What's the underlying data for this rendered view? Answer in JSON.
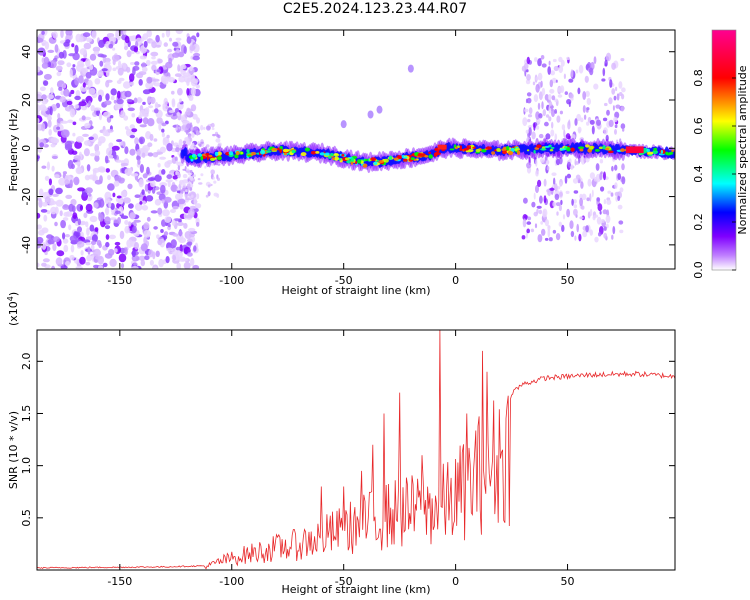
{
  "title": "C2E5.2024.123.23.44.R07",
  "chart_data": [
    {
      "type": "heatmap",
      "xlabel": "Height of straight line (km)",
      "ylabel": "Frequency (Hz)",
      "xlim": [
        -187,
        98
      ],
      "ylim": [
        -50,
        49
      ],
      "xticks": [
        -150,
        -100,
        -50,
        0,
        50
      ],
      "yticks": [
        -40,
        -20,
        0,
        20,
        40
      ],
      "colorbar": {
        "label": "Normalized spectral amplitude",
        "range": [
          0,
          1
        ],
        "ticks": [
          "0.0",
          "0.2",
          "0.4",
          "0.6",
          "0.8"
        ],
        "colors": [
          "#ffffff",
          "#7f00ff",
          "#0000ff",
          "#00ffff",
          "#00ff00",
          "#ffff00",
          "#ff0000",
          "#ff00aa"
        ]
      },
      "features": {
        "noise_region_km": [
          -187,
          -115
        ],
        "signal_track_km": [
          -122,
          98
        ],
        "signal_track_center_hz": [
          [
            -120,
            -4
          ],
          [
            -100,
            -3
          ],
          [
            -80,
            -1
          ],
          [
            -60,
            -2
          ],
          [
            -50,
            -4
          ],
          [
            -40,
            -6
          ],
          [
            -30,
            -5
          ],
          [
            -20,
            -4
          ],
          [
            -10,
            -2
          ],
          [
            -5,
            0
          ],
          [
            0,
            0
          ],
          [
            20,
            -1
          ],
          [
            40,
            0
          ],
          [
            60,
            0
          ],
          [
            98,
            -2
          ]
        ],
        "scatter_band_km": [
          30,
          75
        ]
      }
    },
    {
      "type": "line",
      "xlabel": "Height of straight line (km)",
      "ylabel": "SNR (10 * v/v)",
      "yscale_label": "(x10",
      "yscale_exp": "4",
      "xlim": [
        -187,
        98
      ],
      "ylim": [
        0,
        2.3
      ],
      "xticks": [
        -150,
        -100,
        -50,
        0,
        50
      ],
      "yticks": [
        0.5,
        1.0,
        1.5,
        2.0
      ],
      "ytick_labels": [
        "0.5",
        "1.0",
        "1.5",
        "2.0"
      ],
      "color": "#e8282a",
      "envelope": [
        [
          -187,
          0.02
        ],
        [
          -130,
          0.03
        ],
        [
          -112,
          0.04
        ],
        [
          -105,
          0.12
        ],
        [
          -95,
          0.2
        ],
        [
          -80,
          0.3
        ],
        [
          -70,
          0.35
        ],
        [
          -60,
          0.45
        ],
        [
          -50,
          0.55
        ],
        [
          -40,
          0.65
        ],
        [
          -30,
          0.75
        ],
        [
          -20,
          0.8
        ],
        [
          -10,
          0.85
        ],
        [
          -5,
          0.9
        ],
        [
          0,
          1.0
        ],
        [
          10,
          1.3
        ],
        [
          20,
          1.55
        ],
        [
          25,
          1.7
        ],
        [
          30,
          1.78
        ],
        [
          40,
          1.84
        ],
        [
          60,
          1.87
        ],
        [
          80,
          1.88
        ],
        [
          95,
          1.86
        ],
        [
          98,
          1.85
        ]
      ],
      "spikes": [
        [
          -7,
          2.3
        ],
        [
          -25,
          1.7
        ],
        [
          -32,
          1.5
        ],
        [
          -37,
          1.2
        ],
        [
          -42,
          0.95
        ],
        [
          -50,
          0.8
        ],
        [
          -60,
          0.8
        ],
        [
          12,
          2.1
        ],
        [
          14,
          1.9
        ],
        [
          5,
          1.5
        ],
        [
          -15,
          1.1
        ]
      ]
    }
  ]
}
